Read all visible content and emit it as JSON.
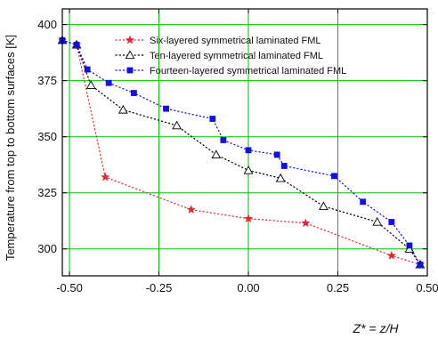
{
  "chart_data": {
    "type": "line",
    "xlabel": "Z* = z/H",
    "ylabel": "Temperature from top to bottom surfaces [K]",
    "xlim": [
      -0.52,
      0.5
    ],
    "ylim": [
      288,
      407
    ],
    "x_ticks": [
      -0.5,
      -0.25,
      0.0,
      0.25,
      0.5
    ],
    "x_tick_labels": [
      "-0.50",
      "-0.25",
      "0.00",
      "0.25",
      "0.50"
    ],
    "y_ticks": [
      300,
      325,
      350,
      375,
      400
    ],
    "y_tick_labels": [
      "300",
      "325",
      "350",
      "375",
      "400"
    ],
    "grid": true,
    "grid_color": "#00c000",
    "legend_position": "top-center",
    "series": [
      {
        "name": "Six-layered symmetrical laminated FML",
        "marker": "star",
        "color": "#e8262b",
        "x": [
          -0.52,
          -0.48,
          -0.4,
          -0.16,
          0.0,
          0.16,
          0.4,
          0.48
        ],
        "y": [
          393,
          391,
          332,
          317.5,
          313.5,
          311.5,
          297,
          293
        ]
      },
      {
        "name": "Ten-layered symmetrical laminated FML",
        "marker": "triangle-open",
        "color": "#000000",
        "x": [
          -0.52,
          -0.48,
          -0.44,
          -0.35,
          -0.2,
          -0.09,
          0.0,
          0.09,
          0.21,
          0.36,
          0.45,
          0.48
        ],
        "y": [
          393,
          391,
          373,
          362,
          355,
          342,
          335,
          331.5,
          319,
          312,
          300,
          293
        ]
      },
      {
        "name": "Fourteen-layered symmetrical laminated FML",
        "marker": "square",
        "color": "#1010e6",
        "x": [
          -0.52,
          -0.48,
          -0.45,
          -0.39,
          -0.32,
          -0.23,
          -0.1,
          -0.07,
          0.0,
          0.08,
          0.1,
          0.24,
          0.32,
          0.4,
          0.45,
          0.48
        ],
        "y": [
          393,
          391,
          380,
          374,
          369.5,
          362.5,
          358,
          348.5,
          344,
          342,
          337,
          332.5,
          321,
          312,
          301.5,
          293
        ]
      }
    ]
  }
}
